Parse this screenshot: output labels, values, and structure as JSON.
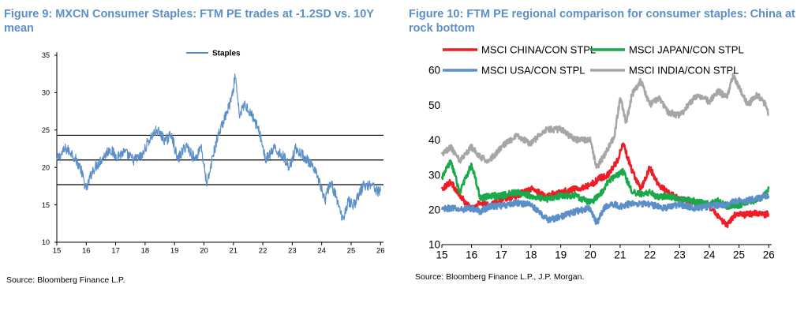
{
  "figures": [
    {
      "title": "Figure 9: MXCN Consumer Staples: FTM PE trades at -1.2SD vs. 10Y mean",
      "source": "Source: Bloomberg Finance L.P."
    },
    {
      "title": "Figure 10: FTM PE regional comparison for consumer staples: China at rock bottom",
      "source": "Source: Bloomberg Finance L.P., J.P. Morgan."
    }
  ],
  "chart_data": [
    {
      "type": "line",
      "title": "Figure 9: MXCN Consumer Staples: FTM PE trades at -1.2SD vs. 10Y mean",
      "xlabel": "",
      "ylabel": "",
      "x_ticks": [
        "15",
        "16",
        "17",
        "18",
        "19",
        "20",
        "21",
        "22",
        "23",
        "24",
        "25",
        "26"
      ],
      "y_ticks": [
        10,
        15,
        20,
        25,
        30,
        35
      ],
      "xlim": [
        2015,
        2026.1
      ],
      "ylim": [
        10,
        35
      ],
      "legend": {
        "position": "top-center",
        "entries": [
          "Staples"
        ]
      },
      "reference_lines": [
        24.3,
        21.0,
        17.7
      ],
      "grid": false,
      "colors": {
        "Staples": "#5b8fc7",
        "reference": "#000000"
      },
      "series": [
        {
          "name": "Staples",
          "x": [
            2015.0,
            2015.3,
            2015.5,
            2015.8,
            2016.0,
            2016.2,
            2016.5,
            2016.8,
            2017.0,
            2017.3,
            2017.6,
            2017.9,
            2018.1,
            2018.4,
            2018.7,
            2018.9,
            2019.1,
            2019.4,
            2019.7,
            2019.9,
            2020.1,
            2020.3,
            2020.5,
            2020.8,
            2021.0,
            2021.05,
            2021.2,
            2021.4,
            2021.7,
            2021.9,
            2022.1,
            2022.4,
            2022.7,
            2022.9,
            2023.1,
            2023.4,
            2023.6,
            2023.9,
            2024.1,
            2024.3,
            2024.5,
            2024.7,
            2024.9,
            2025.1,
            2025.4,
            2025.7,
            2025.9,
            2026.0
          ],
          "values": [
            21.0,
            22.5,
            22.0,
            20.0,
            17.0,
            19.5,
            21.0,
            22.5,
            21.5,
            22.0,
            21.0,
            21.5,
            23.5,
            25.0,
            23.5,
            24.5,
            21.0,
            23.0,
            21.0,
            23.0,
            17.5,
            21.5,
            24.5,
            27.5,
            30.0,
            32.5,
            27.0,
            28.5,
            26.5,
            24.5,
            21.0,
            22.5,
            21.5,
            20.0,
            22.5,
            21.5,
            20.5,
            18.5,
            15.5,
            18.0,
            16.0,
            13.0,
            15.5,
            15.0,
            17.5,
            17.8,
            16.8,
            16.8
          ]
        }
      ]
    },
    {
      "type": "line",
      "title": "Figure 10: FTM PE regional comparison for consumer staples: China at rock bottom",
      "xlabel": "",
      "ylabel": "",
      "x_ticks": [
        "15",
        "16",
        "17",
        "18",
        "19",
        "20",
        "21",
        "22",
        "23",
        "24",
        "25",
        "26"
      ],
      "y_ticks": [
        10,
        20,
        30,
        40,
        50,
        60
      ],
      "xlim": [
        2015,
        2026.1
      ],
      "ylim": [
        10,
        62
      ],
      "legend": {
        "position": "top",
        "entries": [
          "MSCI CHINA/CON STPL",
          "MSCI JAPAN/CON STPL",
          "MSCI USA/CON STPL",
          "MSCI INDIA/CON STPL"
        ]
      },
      "grid": false,
      "colors": {
        "MSCI CHINA/CON STPL": "#ee1c25",
        "MSCI JAPAN/CON STPL": "#19a84a",
        "MSCI USA/CON STPL": "#5b8fc7",
        "MSCI INDIA/CON STPL": "#a6a6a6"
      },
      "series": [
        {
          "name": "MSCI CHINA/CON STPL",
          "x": [
            2015.0,
            2015.3,
            2015.6,
            2016.0,
            2016.3,
            2016.6,
            2017.0,
            2017.5,
            2018.0,
            2018.5,
            2019.0,
            2019.5,
            2020.0,
            2020.3,
            2020.6,
            2020.9,
            2021.1,
            2021.4,
            2021.7,
            2022.0,
            2022.3,
            2022.6,
            2023.0,
            2023.5,
            2024.0,
            2024.3,
            2024.6,
            2024.9,
            2025.2,
            2025.5,
            2025.8,
            2026.0
          ],
          "values": [
            26.0,
            28.0,
            24.0,
            20.0,
            22.0,
            21.0,
            23.0,
            24.0,
            26.0,
            24.0,
            25.0,
            26.0,
            27.0,
            29.0,
            30.0,
            34.0,
            39.0,
            31.0,
            26.0,
            32.0,
            27.0,
            25.0,
            23.0,
            22.0,
            21.0,
            18.0,
            15.5,
            19.0,
            18.5,
            19.0,
            18.5,
            19.0
          ]
        },
        {
          "name": "MSCI JAPAN/CON STPL",
          "x": [
            2015.0,
            2015.3,
            2015.6,
            2016.0,
            2016.3,
            2016.6,
            2017.0,
            2017.5,
            2018.0,
            2018.5,
            2019.0,
            2019.5,
            2020.0,
            2020.3,
            2020.6,
            2020.9,
            2021.1,
            2021.4,
            2021.7,
            2022.0,
            2022.3,
            2022.6,
            2023.0,
            2023.5,
            2024.0,
            2024.3,
            2024.6,
            2024.9,
            2025.2,
            2025.5,
            2025.8,
            2026.0
          ],
          "values": [
            29.0,
            34.0,
            25.0,
            33.0,
            23.0,
            24.0,
            24.0,
            25.0,
            24.0,
            23.0,
            24.0,
            24.0,
            22.0,
            24.0,
            28.0,
            30.0,
            31.0,
            25.0,
            24.5,
            25.0,
            23.5,
            24.0,
            23.0,
            22.5,
            21.5,
            22.5,
            21.0,
            21.0,
            22.0,
            22.5,
            23.5,
            26.0
          ]
        },
        {
          "name": "MSCI USA/CON STPL",
          "x": [
            2015.0,
            2015.3,
            2015.6,
            2016.0,
            2016.3,
            2016.6,
            2017.0,
            2017.5,
            2018.0,
            2018.3,
            2018.6,
            2019.0,
            2019.5,
            2020.0,
            2020.2,
            2020.5,
            2020.8,
            2021.0,
            2021.5,
            2022.0,
            2022.5,
            2023.0,
            2023.5,
            2024.0,
            2024.5,
            2025.0,
            2025.5,
            2026.0
          ],
          "values": [
            20.0,
            20.5,
            20.0,
            20.5,
            19.5,
            21.0,
            21.0,
            22.0,
            21.5,
            19.0,
            17.0,
            18.0,
            19.5,
            20.5,
            16.0,
            21.0,
            21.5,
            21.0,
            22.0,
            21.5,
            20.5,
            21.5,
            20.5,
            21.0,
            21.5,
            22.5,
            23.0,
            24.0
          ]
        },
        {
          "name": "MSCI INDIA/CON STPL",
          "x": [
            2015.0,
            2015.3,
            2015.6,
            2016.0,
            2016.3,
            2016.6,
            2017.0,
            2017.5,
            2018.0,
            2018.5,
            2019.0,
            2019.5,
            2020.0,
            2020.2,
            2020.5,
            2020.8,
            2021.0,
            2021.2,
            2021.4,
            2021.7,
            2022.0,
            2022.3,
            2022.6,
            2023.0,
            2023.3,
            2023.6,
            2024.0,
            2024.3,
            2024.6,
            2024.8,
            2025.0,
            2025.3,
            2025.6,
            2025.9,
            2026.0
          ],
          "values": [
            36.0,
            38.0,
            34.0,
            38.0,
            35.0,
            34.0,
            38.0,
            41.0,
            39.0,
            43.0,
            43.0,
            40.0,
            40.0,
            32.0,
            36.0,
            41.0,
            52.0,
            45.0,
            53.0,
            57.0,
            50.0,
            52.0,
            48.0,
            47.0,
            50.0,
            53.0,
            51.0,
            54.0,
            52.0,
            59.0,
            55.0,
            50.0,
            53.0,
            50.0,
            47.0
          ]
        }
      ]
    }
  ]
}
